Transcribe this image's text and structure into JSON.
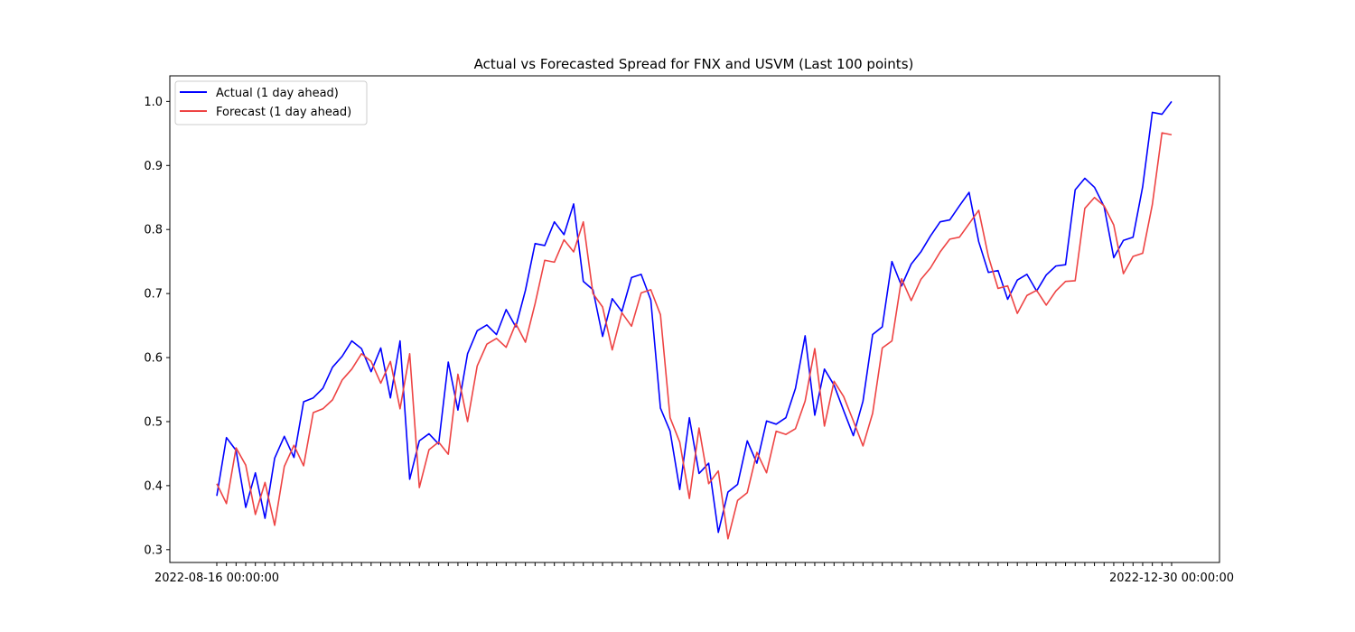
{
  "chart_data": {
    "type": "line",
    "title": "Actual vs Forecasted Spread for FNX and USVM (Last 100 points)",
    "xlabel": "",
    "ylabel": "",
    "ylim": [
      0.28,
      1.04
    ],
    "yticks": [
      0.3,
      0.4,
      0.5,
      0.6,
      0.7,
      0.8,
      0.9,
      1.0
    ],
    "ytick_labels": [
      "0.3",
      "0.4",
      "0.5",
      "0.6",
      "0.7",
      "0.8",
      "0.9",
      "1.0"
    ],
    "x_index_range": [
      0,
      99
    ],
    "x_tick_label_first": "2022-08-16 00:00:00",
    "x_tick_label_last": "2022-12-30 00:00:00",
    "grid": false,
    "legend_position": "upper-left",
    "series": [
      {
        "name": "Actual (1 day ahead)",
        "color": "#0000ff",
        "values": [
          0.384,
          0.475,
          0.455,
          0.366,
          0.42,
          0.349,
          0.443,
          0.477,
          0.444,
          0.531,
          0.537,
          0.552,
          0.585,
          0.602,
          0.626,
          0.614,
          0.578,
          0.615,
          0.537,
          0.626,
          0.41,
          0.47,
          0.481,
          0.465,
          0.593,
          0.518,
          0.606,
          0.642,
          0.651,
          0.636,
          0.675,
          0.648,
          0.705,
          0.778,
          0.775,
          0.812,
          0.792,
          0.84,
          0.719,
          0.706,
          0.633,
          0.692,
          0.672,
          0.725,
          0.73,
          0.69,
          0.521,
          0.485,
          0.394,
          0.506,
          0.419,
          0.435,
          0.327,
          0.39,
          0.402,
          0.47,
          0.435,
          0.501,
          0.496,
          0.506,
          0.552,
          0.634,
          0.51,
          0.582,
          0.557,
          0.517,
          0.478,
          0.532,
          0.636,
          0.648,
          0.75,
          0.712,
          0.746,
          0.765,
          0.79,
          0.812,
          0.815,
          0.837,
          0.858,
          0.781,
          0.733,
          0.736,
          0.691,
          0.721,
          0.73,
          0.704,
          0.729,
          0.743,
          0.745,
          0.862,
          0.88,
          0.866,
          0.836,
          0.756,
          0.783,
          0.788,
          0.867,
          0.983,
          0.98,
          1.0
        ]
      },
      {
        "name": "Forecast (1 day ahead)",
        "color": "#ee4444",
        "values": [
          0.403,
          0.372,
          0.459,
          0.432,
          0.355,
          0.405,
          0.338,
          0.43,
          0.463,
          0.431,
          0.514,
          0.52,
          0.534,
          0.565,
          0.582,
          0.606,
          0.594,
          0.56,
          0.594,
          0.52,
          0.606,
          0.397,
          0.456,
          0.468,
          0.449,
          0.574,
          0.5,
          0.587,
          0.621,
          0.63,
          0.616,
          0.653,
          0.624,
          0.684,
          0.752,
          0.749,
          0.784,
          0.765,
          0.812,
          0.7,
          0.679,
          0.612,
          0.67,
          0.649,
          0.701,
          0.706,
          0.667,
          0.506,
          0.468,
          0.38,
          0.49,
          0.403,
          0.423,
          0.317,
          0.377,
          0.389,
          0.452,
          0.42,
          0.485,
          0.48,
          0.489,
          0.532,
          0.614,
          0.493,
          0.563,
          0.539,
          0.501,
          0.462,
          0.513,
          0.615,
          0.626,
          0.723,
          0.689,
          0.722,
          0.74,
          0.765,
          0.785,
          0.788,
          0.809,
          0.83,
          0.758,
          0.708,
          0.712,
          0.669,
          0.697,
          0.705,
          0.682,
          0.704,
          0.719,
          0.72,
          0.833,
          0.85,
          0.837,
          0.807,
          0.731,
          0.758,
          0.763,
          0.839,
          0.951,
          0.948
        ]
      }
    ]
  }
}
